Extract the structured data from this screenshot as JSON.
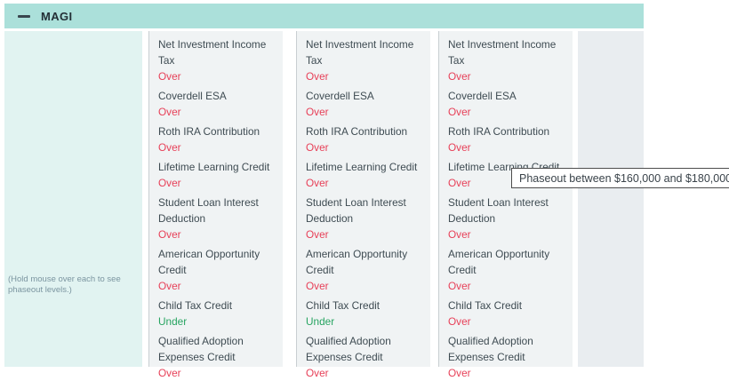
{
  "header": {
    "title": "MAGI",
    "collapse_icon": "minus"
  },
  "sidebar": {
    "note": "(Hold mouse over each to see phaseout levels.)"
  },
  "columns": [
    {
      "name": "column-1",
      "items": [
        {
          "label": "Net Investment Income Tax",
          "status": "Over"
        },
        {
          "label": "Coverdell ESA",
          "status": "Over"
        },
        {
          "label": "Roth IRA Contribution",
          "status": "Over"
        },
        {
          "label": "Lifetime Learning Credit",
          "status": "Over"
        },
        {
          "label": "Student Loan Interest Deduction",
          "status": "Over"
        },
        {
          "label": "American Opportunity Credit",
          "status": "Over"
        },
        {
          "label": "Child Tax Credit",
          "status": "Under"
        },
        {
          "label": "Qualified Adoption Expenses Credit",
          "status": "Over"
        }
      ]
    },
    {
      "name": "column-2",
      "items": [
        {
          "label": "Net Investment Income Tax",
          "status": "Over"
        },
        {
          "label": "Coverdell ESA",
          "status": "Over"
        },
        {
          "label": "Roth IRA Contribution",
          "status": "Over"
        },
        {
          "label": "Lifetime Learning Credit",
          "status": "Over"
        },
        {
          "label": "Student Loan Interest Deduction",
          "status": "Over"
        },
        {
          "label": "American Opportunity Credit",
          "status": "Over"
        },
        {
          "label": "Child Tax Credit",
          "status": "Under"
        },
        {
          "label": "Qualified Adoption Expenses Credit",
          "status": "Over"
        }
      ]
    },
    {
      "name": "column-3",
      "items": [
        {
          "label": "Net Investment Income Tax",
          "status": "Over"
        },
        {
          "label": "Coverdell ESA",
          "status": "Over"
        },
        {
          "label": "Roth IRA Contribution",
          "status": "Over"
        },
        {
          "label": "Lifetime Learning Credit",
          "status": "Over"
        },
        {
          "label": "Student Loan Interest Deduction",
          "status": "Over"
        },
        {
          "label": "American Opportunity Credit",
          "status": "Over"
        },
        {
          "label": "Child Tax Credit",
          "status": "Over"
        },
        {
          "label": "Qualified Adoption Expenses Credit",
          "status": "Over"
        }
      ]
    }
  ],
  "tooltip": {
    "text": "Phaseout between $160,000 and $180,000"
  },
  "colors": {
    "header_bg": "#abe0da",
    "sidebar_bg": "#e1f3f1",
    "column_bg": "#f0f3f4",
    "empty_column_bg": "#e9edf0",
    "over": "#e74058",
    "under": "#27a461"
  }
}
